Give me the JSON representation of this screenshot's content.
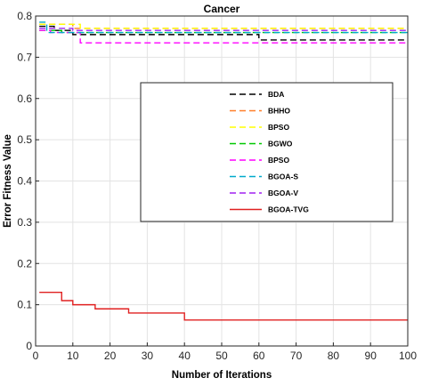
{
  "chart_data": {
    "type": "line",
    "title": "Cancer",
    "xlabel": "Number of Iterations",
    "ylabel": "Error Fitness Value",
    "xlim": [
      0,
      100
    ],
    "ylim": [
      0,
      0.8
    ],
    "xticks": [
      "0",
      "10",
      "20",
      "30",
      "40",
      "50",
      "60",
      "70",
      "80",
      "90",
      "100"
    ],
    "yticks": [
      "0",
      "0.1",
      "0.2",
      "0.3",
      "0.4",
      "0.5",
      "0.6",
      "0.7",
      "0.8"
    ],
    "grid": true,
    "legend_position": "center-right",
    "series": [
      {
        "name": "BDA",
        "color": "#000000",
        "dash": "dashed",
        "points": [
          [
            1,
            0.775
          ],
          [
            5,
            0.775
          ],
          [
            5,
            0.765
          ],
          [
            10,
            0.765
          ],
          [
            10,
            0.755
          ],
          [
            60,
            0.755
          ],
          [
            60,
            0.742
          ],
          [
            100,
            0.742
          ]
        ]
      },
      {
        "name": "BHHO",
        "color": "#ff7f2a",
        "dash": "dashed",
        "points": [
          [
            1,
            0.78
          ],
          [
            10,
            0.78
          ],
          [
            10,
            0.77
          ],
          [
            100,
            0.77
          ]
        ]
      },
      {
        "name": "BPSO",
        "color": "#ffff00",
        "dash": "dashed",
        "points": [
          [
            1,
            0.78
          ],
          [
            12,
            0.78
          ],
          [
            12,
            0.77
          ],
          [
            100,
            0.77
          ]
        ]
      },
      {
        "name": "BGWO",
        "color": "#00c800",
        "dash": "dashed",
        "points": [
          [
            1,
            0.765
          ],
          [
            7,
            0.765
          ],
          [
            7,
            0.76
          ],
          [
            100,
            0.76
          ]
        ]
      },
      {
        "name": "BPSO",
        "color": "#ff00ff",
        "dash": "dashed",
        "points": [
          [
            1,
            0.765
          ],
          [
            4,
            0.765
          ],
          [
            4,
            0.76
          ],
          [
            12,
            0.76
          ],
          [
            12,
            0.735
          ],
          [
            100,
            0.735
          ]
        ]
      },
      {
        "name": "BGOA-S",
        "color": "#00aacc",
        "dash": "dashed",
        "points": [
          [
            1,
            0.785
          ],
          [
            3,
            0.785
          ],
          [
            3,
            0.76
          ],
          [
            100,
            0.76
          ]
        ]
      },
      {
        "name": "BGOA-V",
        "color": "#a020f0",
        "dash": "dashed",
        "points": [
          [
            1,
            0.77
          ],
          [
            10,
            0.77
          ],
          [
            10,
            0.765
          ],
          [
            100,
            0.765
          ]
        ]
      },
      {
        "name": "BGOA-TVG",
        "color": "#e02020",
        "dash": "solid",
        "points": [
          [
            1,
            0.13
          ],
          [
            7,
            0.13
          ],
          [
            7,
            0.11
          ],
          [
            10,
            0.11
          ],
          [
            10,
            0.1
          ],
          [
            16,
            0.1
          ],
          [
            16,
            0.09
          ],
          [
            25,
            0.09
          ],
          [
            25,
            0.08
          ],
          [
            40,
            0.08
          ],
          [
            40,
            0.063
          ],
          [
            100,
            0.063
          ]
        ]
      }
    ]
  }
}
